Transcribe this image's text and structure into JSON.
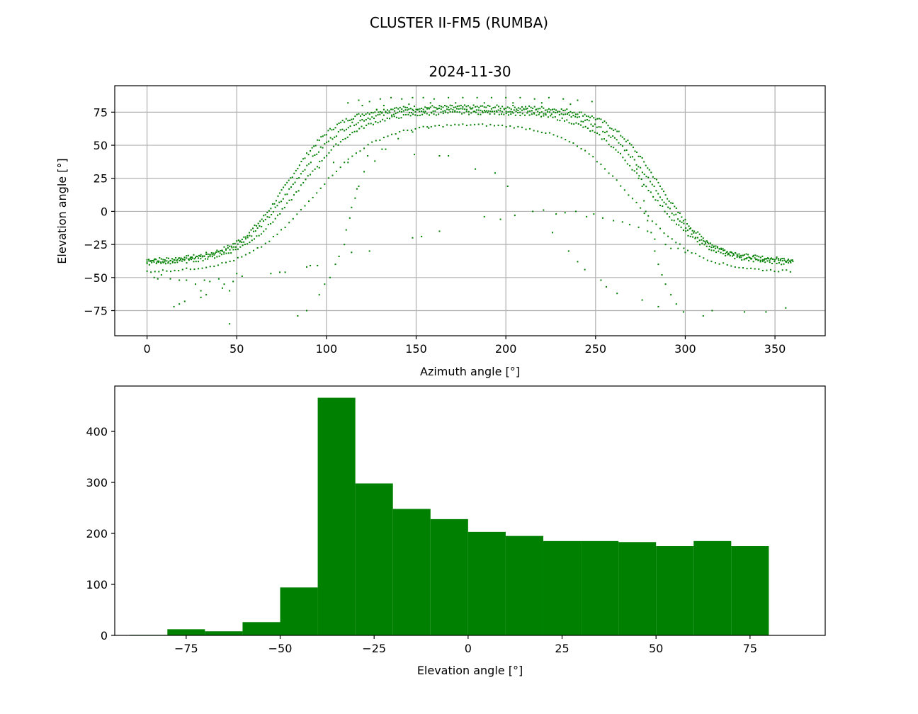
{
  "figure": {
    "suptitle": "CLUSTER II-FM5 (RUMBA)"
  },
  "colors": {
    "series": "#008000",
    "grid": "#b0b0b0",
    "axes": "#000000",
    "background": "#ffffff"
  },
  "chart_data": [
    {
      "type": "scatter",
      "title": "2024-11-30",
      "xlabel": "Azimuth angle [°]",
      "ylabel": "Elevation angle [°]",
      "xlim": [
        -18,
        378
      ],
      "ylim": [
        -94,
        95
      ],
      "xticks": [
        0,
        50,
        100,
        150,
        200,
        250,
        300,
        350
      ],
      "yticks": [
        -75,
        -50,
        -25,
        0,
        25,
        50,
        75
      ],
      "xtick_labels": [
        "0",
        "50",
        "100",
        "150",
        "200",
        "250",
        "300",
        "350"
      ],
      "ytick_labels": [
        "−75",
        "−50",
        "−25",
        "0",
        "25",
        "50",
        "75"
      ],
      "grid": true,
      "marker": "small square",
      "color": "#008000",
      "track_series": [
        {
          "plateau": 79,
          "base": -37,
          "rise_mid": 78,
          "rise_w": 14,
          "fall_mid": 285,
          "fall_w": 14,
          "step": 1.0,
          "jitter": 1.5
        },
        {
          "plateau": 77,
          "base": -38,
          "rise_mid": 81,
          "rise_w": 15,
          "fall_mid": 282,
          "fall_w": 15,
          "step": 1.1,
          "jitter": 1.5
        },
        {
          "plateau": 75,
          "base": -40,
          "rise_mid": 85,
          "rise_w": 16,
          "fall_mid": 279,
          "fall_w": 16,
          "step": 1.3,
          "jitter": 1.2
        },
        {
          "plateau": 67,
          "base": -46,
          "rise_mid": 92,
          "rise_w": 18,
          "fall_mid": 270,
          "fall_w": 18,
          "step": 2.2,
          "jitter": 0.8
        }
      ],
      "peak_points": [
        {
          "x": 112,
          "y": 82
        },
        {
          "x": 118,
          "y": 84
        },
        {
          "x": 124,
          "y": 83
        },
        {
          "x": 130,
          "y": 85
        },
        {
          "x": 136,
          "y": 86
        },
        {
          "x": 142,
          "y": 85
        },
        {
          "x": 148,
          "y": 86
        },
        {
          "x": 154,
          "y": 86
        },
        {
          "x": 160,
          "y": 85
        },
        {
          "x": 168,
          "y": 86
        },
        {
          "x": 176,
          "y": 86
        },
        {
          "x": 184,
          "y": 86
        },
        {
          "x": 192,
          "y": 86
        },
        {
          "x": 200,
          "y": 86
        },
        {
          "x": 208,
          "y": 86
        },
        {
          "x": 216,
          "y": 85
        },
        {
          "x": 224,
          "y": 86
        },
        {
          "x": 232,
          "y": 85
        },
        {
          "x": 240,
          "y": 84
        },
        {
          "x": 248,
          "y": 83
        },
        {
          "x": 120,
          "y": 80
        },
        {
          "x": 132,
          "y": 80
        },
        {
          "x": 146,
          "y": 81
        },
        {
          "x": 158,
          "y": 82
        },
        {
          "x": 172,
          "y": 82
        },
        {
          "x": 188,
          "y": 82
        },
        {
          "x": 204,
          "y": 82
        },
        {
          "x": 220,
          "y": 82
        },
        {
          "x": 236,
          "y": 81
        },
        {
          "x": 128,
          "y": 77
        },
        {
          "x": 138,
          "y": 78
        },
        {
          "x": 226,
          "y": 77
        }
      ],
      "scatter_points": [
        {
          "x": 4,
          "y": -50
        },
        {
          "x": 6,
          "y": -51
        },
        {
          "x": 8,
          "y": -48
        },
        {
          "x": 13,
          "y": -51
        },
        {
          "x": 18,
          "y": -52
        },
        {
          "x": 22,
          "y": -52
        },
        {
          "x": 27,
          "y": -55
        },
        {
          "x": 32,
          "y": -52
        },
        {
          "x": 35,
          "y": -53
        },
        {
          "x": 40,
          "y": -51
        },
        {
          "x": 43,
          "y": -55
        },
        {
          "x": 48,
          "y": -53
        },
        {
          "x": 50,
          "y": -47
        },
        {
          "x": 53,
          "y": -49
        },
        {
          "x": 30,
          "y": -60
        },
        {
          "x": 33,
          "y": -63
        },
        {
          "x": 42,
          "y": -58
        },
        {
          "x": 46,
          "y": -60
        },
        {
          "x": 15,
          "y": -72
        },
        {
          "x": 18,
          "y": -70
        },
        {
          "x": 21,
          "y": -68
        },
        {
          "x": 30,
          "y": -65
        },
        {
          "x": 46,
          "y": -85
        },
        {
          "x": 84,
          "y": -79
        },
        {
          "x": 89,
          "y": -75
        },
        {
          "x": 96,
          "y": -63
        },
        {
          "x": 99,
          "y": -55
        },
        {
          "x": 102,
          "y": -50
        },
        {
          "x": 105,
          "y": -40
        },
        {
          "x": 107,
          "y": -34
        },
        {
          "x": 110,
          "y": -25
        },
        {
          "x": 111,
          "y": -14
        },
        {
          "x": 113,
          "y": -5
        },
        {
          "x": 114,
          "y": 3
        },
        {
          "x": 116,
          "y": 10
        },
        {
          "x": 117,
          "y": 17
        },
        {
          "x": 118,
          "y": 19
        },
        {
          "x": 121,
          "y": 30
        },
        {
          "x": 123,
          "y": 42
        },
        {
          "x": 127,
          "y": 38
        },
        {
          "x": 131,
          "y": 47
        },
        {
          "x": 133,
          "y": 47
        },
        {
          "x": 140,
          "y": 55
        },
        {
          "x": 148,
          "y": 60
        },
        {
          "x": 157,
          "y": 63
        },
        {
          "x": 163,
          "y": 42
        },
        {
          "x": 168,
          "y": 42
        },
        {
          "x": 149,
          "y": 43
        },
        {
          "x": 183,
          "y": 32
        },
        {
          "x": 194,
          "y": 29
        },
        {
          "x": 201,
          "y": 19
        },
        {
          "x": 96,
          "y": 33
        },
        {
          "x": 104,
          "y": 37
        },
        {
          "x": 112,
          "y": 37
        },
        {
          "x": 69,
          "y": -47
        },
        {
          "x": 74,
          "y": -46
        },
        {
          "x": 77,
          "y": -46
        },
        {
          "x": 89,
          "y": -42
        },
        {
          "x": 91,
          "y": -41
        },
        {
          "x": 95,
          "y": -41
        },
        {
          "x": 114,
          "y": -31
        },
        {
          "x": 124,
          "y": -30
        },
        {
          "x": 148,
          "y": -20
        },
        {
          "x": 153,
          "y": -19
        },
        {
          "x": 163,
          "y": -15
        },
        {
          "x": 188,
          "y": -4
        },
        {
          "x": 197,
          "y": -6
        },
        {
          "x": 205,
          "y": -3
        },
        {
          "x": 215,
          "y": 0
        },
        {
          "x": 221,
          "y": 1
        },
        {
          "x": 228,
          "y": -2
        },
        {
          "x": 233,
          "y": -1
        },
        {
          "x": 239,
          "y": 0
        },
        {
          "x": 245,
          "y": -4
        },
        {
          "x": 249,
          "y": -2
        },
        {
          "x": 254,
          "y": -5
        },
        {
          "x": 260,
          "y": -7
        },
        {
          "x": 265,
          "y": -8
        },
        {
          "x": 269,
          "y": -10
        },
        {
          "x": 274,
          "y": -12
        },
        {
          "x": 279,
          "y": -15
        },
        {
          "x": 283,
          "y": -21
        },
        {
          "x": 289,
          "y": -25
        },
        {
          "x": 292,
          "y": -28
        },
        {
          "x": 296,
          "y": -28
        },
        {
          "x": 300,
          "y": -31
        },
        {
          "x": 226,
          "y": -16
        },
        {
          "x": 235,
          "y": -30
        },
        {
          "x": 240,
          "y": -38
        },
        {
          "x": 244,
          "y": -44
        },
        {
          "x": 253,
          "y": -52
        },
        {
          "x": 256,
          "y": -57
        },
        {
          "x": 262,
          "y": -62
        },
        {
          "x": 276,
          "y": -67
        },
        {
          "x": 285,
          "y": -72
        },
        {
          "x": 295,
          "y": -70
        },
        {
          "x": 299,
          "y": -76
        },
        {
          "x": 310,
          "y": -79
        },
        {
          "x": 315,
          "y": -75
        },
        {
          "x": 333,
          "y": -76
        },
        {
          "x": 345,
          "y": -76
        },
        {
          "x": 356,
          "y": -73
        },
        {
          "x": 276,
          "y": 19
        },
        {
          "x": 277,
          "y": 8
        },
        {
          "x": 278,
          "y": 0
        },
        {
          "x": 279,
          "y": -7
        },
        {
          "x": 281,
          "y": -16
        },
        {
          "x": 283,
          "y": -30
        },
        {
          "x": 285,
          "y": -40
        },
        {
          "x": 287,
          "y": -48
        },
        {
          "x": 289,
          "y": -55
        },
        {
          "x": 292,
          "y": -63
        },
        {
          "x": 274,
          "y": 25
        },
        {
          "x": 273,
          "y": 32
        }
      ]
    },
    {
      "type": "bar",
      "title": "",
      "xlabel": "Elevation angle [°]",
      "ylabel": "",
      "xlim": [
        -94,
        95
      ],
      "ylim": [
        0,
        489
      ],
      "xticks": [
        -75,
        -50,
        -25,
        0,
        25,
        50,
        75
      ],
      "yticks": [
        0,
        100,
        200,
        300,
        400
      ],
      "xtick_labels": [
        "−75",
        "−50",
        "−25",
        "0",
        "25",
        "50",
        "75"
      ],
      "ytick_labels": [
        "0",
        "100",
        "200",
        "300",
        "400"
      ],
      "grid": false,
      "color": "#008000",
      "bin_edges": [
        -90,
        -80,
        -70,
        -60,
        -50,
        -40,
        -30,
        -20,
        -10,
        0,
        10,
        20,
        30,
        40,
        50,
        60,
        70,
        80
      ],
      "values": [
        1,
        12,
        8,
        26,
        94,
        466,
        298,
        248,
        228,
        203,
        195,
        185,
        185,
        183,
        175,
        185,
        175
      ]
    }
  ]
}
